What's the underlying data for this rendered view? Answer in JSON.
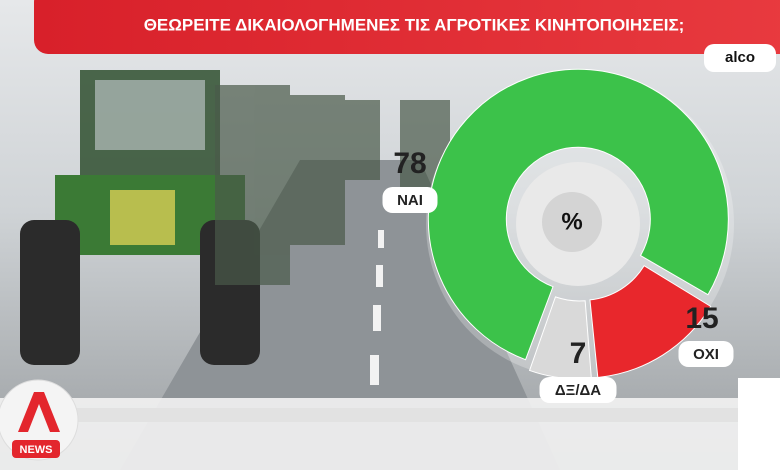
{
  "chart_data": {
    "type": "donut",
    "title": "ΘΕΩΡΕΙΤΕ ΔΙΚΑΙΟΛΟΓΗΜΕΝΕΣ ΤΙΣ ΑΓΡΟΤΙΚΕΣ ΚΙΝΗΤΟΠΟΙΗΣΕΙΣ;",
    "source": "alco",
    "center_label": "%",
    "categories": [
      "ΝΑΙ",
      "ΟΧΙ",
      "ΔΞ/ΔΑ"
    ],
    "values": [
      78,
      15,
      7
    ],
    "colors": [
      "#3cc24a",
      "#e8272c",
      "#d9d9d9"
    ]
  },
  "logo": {
    "text": "NEWS"
  }
}
